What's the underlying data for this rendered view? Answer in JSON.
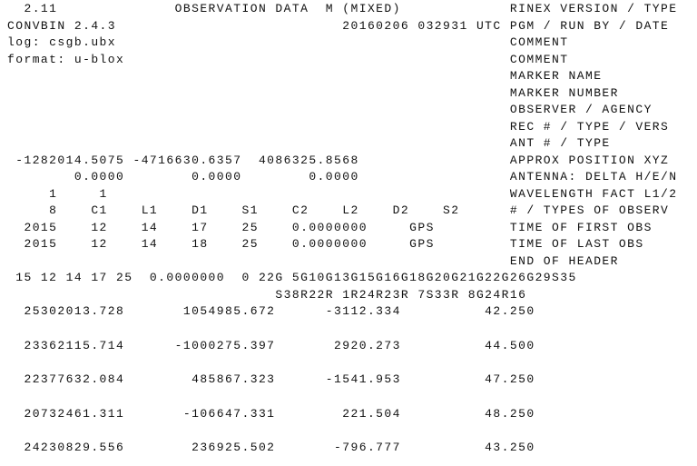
{
  "header_lines": [
    "  2.11              OBSERVATION DATA  M (MIXED)             RINEX VERSION / TYPE",
    "CONVBIN 2.4.3                           20160206 032931 UTC PGM / RUN BY / DATE",
    "log: csgb.ubx                                               COMMENT",
    "format: u-blox                                              COMMENT",
    "                                                            MARKER NAME",
    "                                                            MARKER NUMBER",
    "                                                            OBSERVER / AGENCY",
    "                                                            REC # / TYPE / VERS",
    "                                                            ANT # / TYPE",
    " -1282014.5075 -4716630.6357  4086325.8568                  APPROX POSITION XYZ",
    "        0.0000        0.0000        0.0000                  ANTENNA: DELTA H/E/N",
    "     1     1                                                WAVELENGTH FACT L1/2",
    "     8    C1    L1    D1    S1    C2    L2    D2    S2      # / TYPES OF OBSERV",
    "  2015    12    14    17    25    0.0000000     GPS         TIME OF FIRST OBS",
    "  2015    12    14    18    25    0.0000000     GPS         TIME OF LAST OBS",
    "                                                            END OF HEADER"
  ],
  "epoch_lines": [
    " 15 12 14 17 25  0.0000000  0 22G 5G10G13G15G16G18G20G21G22G26G29S35",
    "                                S38R22R 1R24R23R 7S33R 8G24R16"
  ],
  "observations": [
    "  25302013.728       1054985.672      -3112.334          42.250",
    "  23362115.714      -1000275.397       2920.273          44.500",
    "  22377632.084        485867.323      -1541.953          47.250",
    "  20732461.311       -106647.331        221.504          48.250",
    "  24230829.556        236925.502       -796.777          43.250"
  ]
}
